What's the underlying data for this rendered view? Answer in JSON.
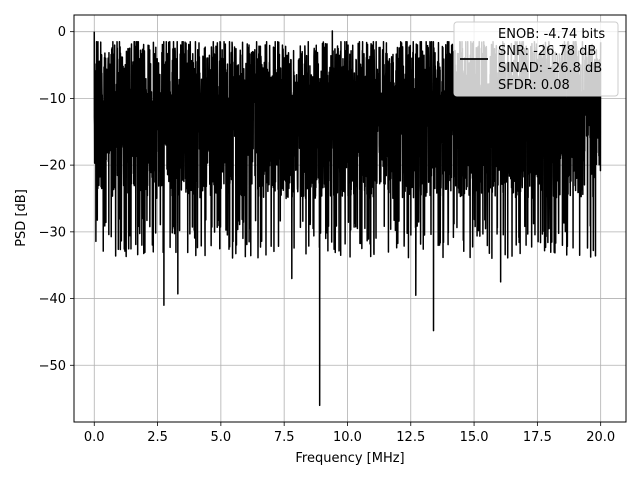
{
  "chart_data": {
    "type": "line",
    "title": "",
    "xlabel": "Frequency [MHz]",
    "ylabel": "PSD [dB]",
    "xlim": [
      -0.8,
      21.0
    ],
    "ylim": [
      -58.5,
      2.5
    ],
    "xticks": [
      0.0,
      2.5,
      5.0,
      7.5,
      10.0,
      12.5,
      15.0,
      17.5,
      20.0
    ],
    "xtick_labels": [
      "0.0",
      "2.5",
      "5.0",
      "7.5",
      "10.0",
      "12.5",
      "15.0",
      "17.5",
      "20.0"
    ],
    "yticks": [
      0,
      -10,
      -20,
      -30,
      -40,
      -50
    ],
    "ytick_labels": [
      "0",
      "−10",
      "−20",
      "−30",
      "−40",
      "−50"
    ],
    "grid": true,
    "legend_position": "top-right",
    "legend_lines": [
      "ENOB: -4.74 bits",
      "SNR: -26.78 dB",
      "SINAD: -26.8 dB",
      "SFDR: 0.08"
    ],
    "series": [
      {
        "color": "#000000",
        "x_start": 0.0,
        "x_end": 20.0,
        "points": 4000,
        "typical_max": -5,
        "typical_min": -28,
        "peaks": [
          [
            0.0,
            0.0
          ],
          [
            9.4,
            0.1
          ]
        ],
        "dips": [
          [
            2.75,
            -41.0
          ],
          [
            3.3,
            -39.3
          ],
          [
            7.8,
            -37.0
          ],
          [
            8.9,
            -56.0
          ],
          [
            12.7,
            -39.5
          ],
          [
            13.4,
            -44.8
          ],
          [
            16.05,
            -37.5
          ]
        ]
      }
    ]
  }
}
